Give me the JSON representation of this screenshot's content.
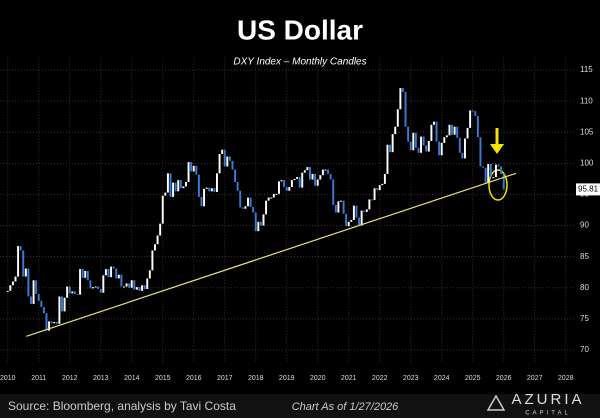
{
  "chart_data": {
    "type": "candles",
    "title": "US Dollar",
    "subtitle": "DXY Index – Monthly Candles",
    "series": [
      {
        "name": "DXY Index",
        "up_color": "#ffffff",
        "down_color": "#3a7bd5",
        "values": [
          79.5,
          80.4,
          81.0,
          81.8,
          86.7,
          86.0,
          81.8,
          83.1,
          78.6,
          77.4,
          81.2,
          79.0,
          77.9,
          76.9,
          75.9,
          73.1,
          74.6,
          74.3,
          74.5,
          74.2,
          78.6,
          76.2,
          78.4,
          80.2,
          79.1,
          79.4,
          79.0,
          78.9,
          83.0,
          81.6,
          82.7,
          81.2,
          79.9,
          80.1,
          80.2,
          79.8,
          79.2,
          82.0,
          83.0,
          81.7,
          83.4,
          83.1,
          81.5,
          82.1,
          80.2,
          80.2,
          80.7,
          80.0,
          81.2,
          79.7,
          80.1,
          79.5,
          80.4,
          79.8,
          81.5,
          82.8,
          86.0,
          87.0,
          88.4,
          90.3,
          94.8,
          95.3,
          98.4,
          94.6,
          96.9,
          95.5,
          97.3,
          96.0,
          96.3,
          97.0,
          100.2,
          98.7,
          99.6,
          98.2,
          94.6,
          93.1,
          95.9,
          96.1,
          95.5,
          96.0,
          95.4,
          98.4,
          101.5,
          102.2,
          99.5,
          101.1,
          100.4,
          99.0,
          97.0,
          95.6,
          92.9,
          92.7,
          93.1,
          94.5,
          93.0,
          92.1,
          89.1,
          90.6,
          90.0,
          91.8,
          94.0,
          94.5,
          94.5,
          95.1,
          95.1,
          97.1,
          97.3,
          96.2,
          95.6,
          96.2,
          97.3,
          97.5,
          97.8,
          96.1,
          98.5,
          98.9,
          99.4,
          97.4,
          98.3,
          96.4,
          97.4,
          98.1,
          99.0,
          99.0,
          98.3,
          97.4,
          93.3,
          92.1,
          93.9,
          94.0,
          91.9,
          89.9,
          90.6,
          90.9,
          93.2,
          91.3,
          90.0,
          92.4,
          92.2,
          92.6,
          94.2,
          94.1,
          96.0,
          95.7,
          96.5,
          96.7,
          98.3,
          103.0,
          101.8,
          104.7,
          105.9,
          108.7,
          112.1,
          111.5,
          105.9,
          103.5,
          102.1,
          104.9,
          102.5,
          101.7,
          104.3,
          102.9,
          101.9,
          103.6,
          106.2,
          106.7,
          103.5,
          101.3,
          103.3,
          104.2,
          104.5,
          106.2,
          104.6,
          105.9,
          104.1,
          101.7,
          100.8,
          104.0,
          105.7,
          108.5,
          108.4,
          107.6,
          104.2,
          99.5,
          99.3,
          96.9,
          99.9,
          97.8,
          97.8,
          99.8,
          99.5,
          98.3,
          95.81
        ]
      }
    ],
    "trendline": {
      "color": "#e8e27a",
      "x": [
        2010.6,
        2026.4
      ],
      "y": [
        72.2,
        98.4
      ]
    },
    "last_label": 95.81,
    "xlim": [
      2009.75,
      2028.3
    ],
    "xticks": [
      2010,
      2011,
      2012,
      2013,
      2014,
      2015,
      2016,
      2017,
      2018,
      2019,
      2020,
      2021,
      2022,
      2023,
      2024,
      2025,
      2026,
      2027,
      2028
    ],
    "ylim": [
      68,
      117
    ],
    "yticks": [
      70,
      75,
      80,
      85,
      90,
      95,
      100,
      105,
      110,
      115
    ],
    "grid": true,
    "source": "Source: Bloomberg, analysis by Tavi Costa",
    "date_note": "Chart As of 1/27/2026",
    "logo": {
      "name": "AZURIA",
      "sub": "CAPITAL"
    }
  }
}
